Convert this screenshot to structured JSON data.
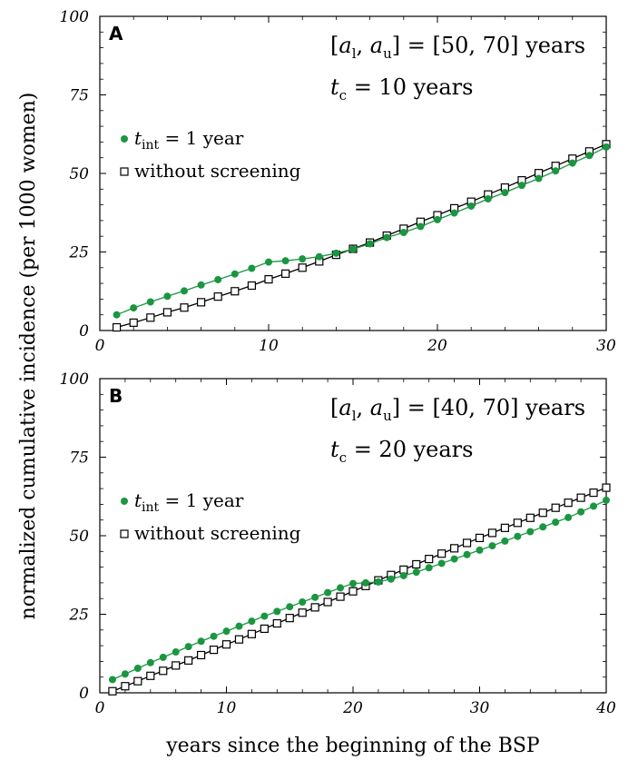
{
  "figure": {
    "ylabel": "normalized cumulative incidence (per 1000 women)",
    "xlabel": "years since the beginning of the BSP"
  },
  "colors": {
    "screening": "#1a9641",
    "without": "#000000"
  },
  "chart_data": [
    {
      "type": "line",
      "panel_label": "A",
      "annotation_line1": "[a_l, a_u] = [50, 70] years",
      "annotation_line1_parts": {
        "open": "[",
        "a1": "a",
        "s1": "l",
        "comma": ", ",
        "a2": "a",
        "s2": "u",
        "rhs": "] = [50, 70]",
        "unit": "years"
      },
      "annotation_line2_parts": {
        "t": "t",
        "sub": "c",
        "rhs": " = 10",
        "unit": "years"
      },
      "legend": [
        {
          "marker": "filled-circle",
          "t": "t",
          "sub": "int",
          "rhs": " = 1",
          "unit": "year"
        },
        {
          "marker": "open-square",
          "label": "without screening"
        }
      ],
      "xlim": [
        0,
        30
      ],
      "ylim": [
        0,
        100
      ],
      "xticks": [
        "0",
        "10",
        "20",
        "30"
      ],
      "yticks": [
        "0",
        "25",
        "50",
        "75",
        "100"
      ],
      "x": [
        1,
        2,
        3,
        4,
        5,
        6,
        7,
        8,
        9,
        10,
        11,
        12,
        13,
        14,
        15,
        16,
        17,
        18,
        19,
        20,
        21,
        22,
        23,
        24,
        25,
        26,
        27,
        28,
        29,
        30
      ],
      "series": [
        {
          "marker": "filled-circle",
          "color": "#1a9641",
          "values": [
            5.0,
            7.2,
            9.1,
            10.9,
            12.6,
            14.5,
            16.2,
            18.0,
            19.8,
            21.8,
            22.2,
            22.8,
            23.5,
            24.6,
            25.9,
            27.6,
            29.6,
            31.2,
            33.1,
            35.3,
            37.4,
            39.6,
            41.9,
            43.9,
            46.2,
            48.4,
            50.8,
            53.3,
            55.7,
            58.4
          ]
        },
        {
          "marker": "open-square",
          "color": "#000000",
          "values": [
            1.0,
            2.5,
            4.1,
            5.8,
            7.3,
            9.0,
            10.8,
            12.5,
            14.3,
            16.3,
            18.1,
            20.0,
            22.0,
            24.1,
            26.0,
            28.0,
            30.2,
            32.4,
            34.6,
            36.7,
            38.9,
            41.0,
            43.3,
            45.5,
            47.8,
            50.1,
            52.4,
            54.7,
            57.0,
            59.3
          ]
        }
      ]
    },
    {
      "type": "line",
      "panel_label": "B",
      "annotation_line1": "[a_l, a_u] = [40, 70] years",
      "annotation_line1_parts": {
        "open": "[",
        "a1": "a",
        "s1": "l",
        "comma": ", ",
        "a2": "a",
        "s2": "u",
        "rhs": "] = [40, 70]",
        "unit": "years"
      },
      "annotation_line2_parts": {
        "t": "t",
        "sub": "c",
        "rhs": " = 20",
        "unit": "years"
      },
      "legend": [
        {
          "marker": "filled-circle",
          "t": "t",
          "sub": "int",
          "rhs": " = 1",
          "unit": "year"
        },
        {
          "marker": "open-square",
          "label": "without screening"
        }
      ],
      "xlim": [
        0,
        40
      ],
      "ylim": [
        0,
        100
      ],
      "xticks": [
        "0",
        "10",
        "20",
        "30",
        "40"
      ],
      "yticks": [
        "0",
        "25",
        "50",
        "75",
        "100"
      ],
      "x": [
        1,
        2,
        3,
        4,
        5,
        6,
        7,
        8,
        9,
        10,
        11,
        12,
        13,
        14,
        15,
        16,
        17,
        18,
        19,
        20,
        21,
        22,
        23,
        24,
        25,
        26,
        27,
        28,
        29,
        30,
        31,
        32,
        33,
        34,
        35,
        36,
        37,
        38,
        39,
        40
      ],
      "series": [
        {
          "marker": "filled-circle",
          "color": "#1a9641",
          "values": [
            4.2,
            6.0,
            7.8,
            9.6,
            11.3,
            13.0,
            14.7,
            16.4,
            18.0,
            19.6,
            21.2,
            22.8,
            24.4,
            25.9,
            27.4,
            28.9,
            30.4,
            31.9,
            33.4,
            34.8,
            35.0,
            35.3,
            36.2,
            37.3,
            38.4,
            39.8,
            41.2,
            42.6,
            44.0,
            45.4,
            46.8,
            48.3,
            49.8,
            51.3,
            52.8,
            54.3,
            55.8,
            57.6,
            59.4,
            61.3
          ]
        },
        {
          "marker": "open-square",
          "color": "#000000",
          "values": [
            0.5,
            2.1,
            3.7,
            5.4,
            7.0,
            8.7,
            10.3,
            12.0,
            13.7,
            15.4,
            17.0,
            18.7,
            20.4,
            22.1,
            23.8,
            25.5,
            27.2,
            28.9,
            30.6,
            32.3,
            34.0,
            35.8,
            37.5,
            39.2,
            40.9,
            42.6,
            44.3,
            46.0,
            47.7,
            49.3,
            50.9,
            52.5,
            54.1,
            55.7,
            57.3,
            58.9,
            60.5,
            62.1,
            63.7,
            65.3
          ]
        }
      ]
    }
  ]
}
